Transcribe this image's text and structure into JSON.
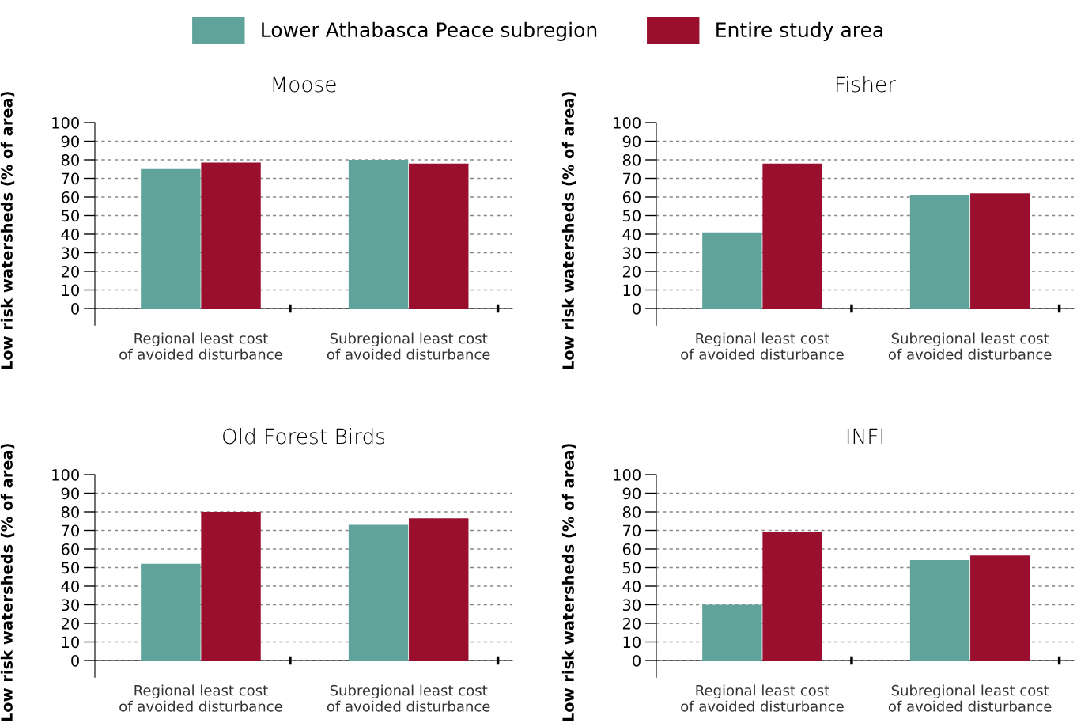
{
  "chart_data": [
    {
      "type": "bar",
      "title": "Moose",
      "ylabel": "Low risk watersheds (% of area)",
      "categories": [
        "Regional least cost\nof avoided disturbance",
        "Subregional least cost\nof avoided disturbance"
      ],
      "series": [
        {
          "name": "Lower Athabasca Peace subregion",
          "color": "#5fa39b",
          "values": [
            75,
            80
          ]
        },
        {
          "name": "Entire study area",
          "color": "#9b0f2e",
          "values": [
            78.5,
            78
          ]
        }
      ],
      "ylim": [
        0,
        100
      ],
      "yticks": [
        0,
        10,
        20,
        30,
        40,
        50,
        60,
        70,
        80,
        90,
        100
      ],
      "grid": "y",
      "legend": "top"
    },
    {
      "type": "bar",
      "title": "Fisher",
      "ylabel": "Low risk watersheds (% of area)",
      "categories": [
        "Regional least cost\nof avoided disturbance",
        "Subregional least cost\nof avoided disturbance"
      ],
      "series": [
        {
          "color": "#5fa39b",
          "values": [
            41,
            61
          ]
        },
        {
          "color": "#9b0f2e",
          "values": [
            78,
            62
          ]
        }
      ],
      "ylim": [
        0,
        100
      ],
      "yticks": [
        0,
        10,
        20,
        30,
        40,
        50,
        60,
        70,
        80,
        90,
        100
      ],
      "grid": "y"
    },
    {
      "type": "bar",
      "title": "Old Forest Birds",
      "ylabel": "Low risk watersheds (% of area)",
      "categories": [
        "Regional least cost\nof avoided disturbance",
        "Subregional least cost\nof avoided disturbance"
      ],
      "series": [
        {
          "color": "#5fa39b",
          "values": [
            52,
            73
          ]
        },
        {
          "color": "#9b0f2e",
          "values": [
            80,
            76.5
          ]
        }
      ],
      "ylim": [
        0,
        100
      ],
      "yticks": [
        0,
        10,
        20,
        30,
        40,
        50,
        60,
        70,
        80,
        90,
        100
      ],
      "grid": "y"
    },
    {
      "type": "bar",
      "title": "INFI",
      "ylabel": "Low risk watersheds (% of area)",
      "categories": [
        "Regional least cost\nof avoided disturbance",
        "Subregional least cost\nof avoided disturbance"
      ],
      "series": [
        {
          "color": "#5fa39b",
          "values": [
            30,
            54
          ]
        },
        {
          "color": "#9b0f2e",
          "values": [
            69,
            56.5
          ]
        }
      ],
      "ylim": [
        0,
        100
      ],
      "yticks": [
        0,
        10,
        20,
        30,
        40,
        50,
        60,
        70,
        80,
        90,
        100
      ],
      "grid": "y"
    }
  ]
}
